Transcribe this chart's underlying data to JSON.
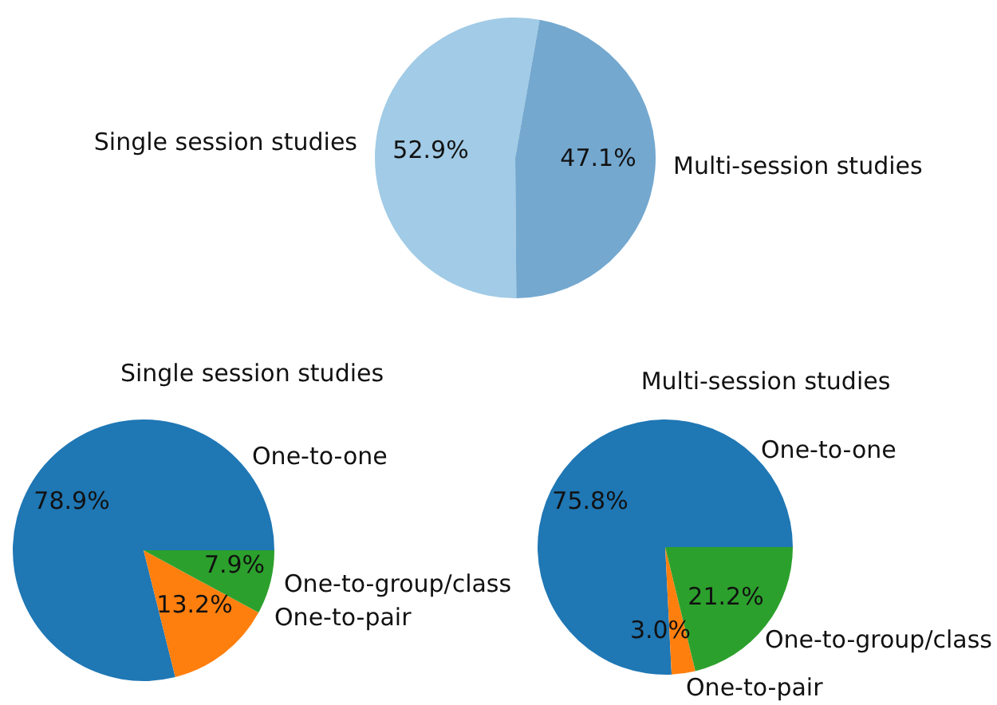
{
  "chart_data": [
    {
      "type": "pie",
      "categories": [
        "Single session studies",
        "Multi-session studies"
      ],
      "values": [
        52.9,
        47.1
      ],
      "colors": [
        "#a1cbe6",
        "#74a8cf"
      ],
      "value_labels": [
        "52.9%",
        "47.1%"
      ]
    },
    {
      "type": "pie",
      "title": "Single session studies",
      "categories": [
        "One-to-one",
        "One-to-pair",
        "One-to-group/class"
      ],
      "values": [
        78.9,
        13.2,
        7.9
      ],
      "colors": [
        "#1f77b4",
        "#ff7f0e",
        "#2ca02c"
      ],
      "value_labels": [
        "78.9%",
        "13.2%",
        "7.9%"
      ]
    },
    {
      "type": "pie",
      "title": "Multi-session studies",
      "categories": [
        "One-to-one",
        "One-to-pair",
        "One-to-group/class"
      ],
      "values": [
        75.8,
        3.0,
        21.2
      ],
      "colors": [
        "#1f77b4",
        "#ff7f0e",
        "#2ca02c"
      ],
      "value_labels": [
        "75.8%",
        "3.0%",
        "21.2%"
      ]
    }
  ]
}
